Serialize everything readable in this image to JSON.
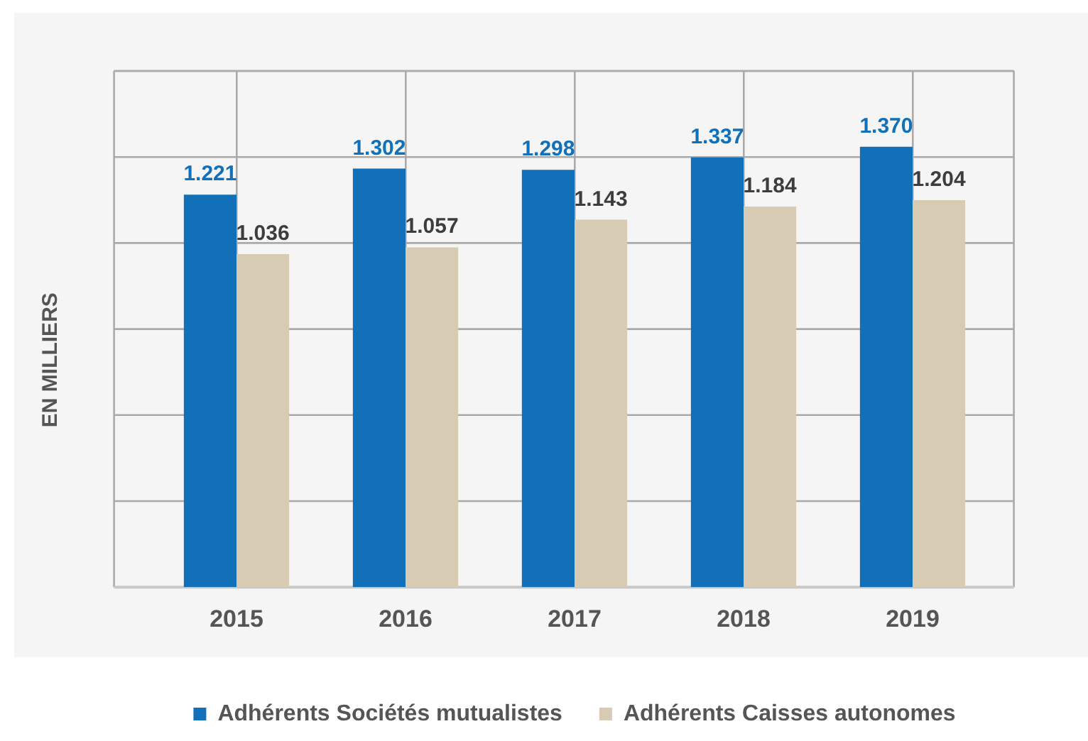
{
  "chart_data": {
    "type": "bar",
    "ylabel": "EN MILLIERS",
    "categories": [
      "2015",
      "2016",
      "2017",
      "2018",
      "2019"
    ],
    "series": [
      {
        "name": "Adhérents Sociétés mutualistes",
        "color": "#1170b8",
        "values": [
          1221,
          1302,
          1298,
          1337,
          1370
        ],
        "value_labels": [
          "1.221",
          "1.302",
          "1.298",
          "1.337",
          "1.370"
        ]
      },
      {
        "name": "Adhérents Caisses autonomes",
        "color": "#d7cbb4",
        "values": [
          1036,
          1057,
          1143,
          1184,
          1204
        ],
        "value_labels": [
          "1.036",
          "1.057",
          "1.143",
          "1.184",
          "1.204"
        ]
      }
    ],
    "grid": true,
    "legend": "bottom",
    "tick_labels": "x"
  }
}
